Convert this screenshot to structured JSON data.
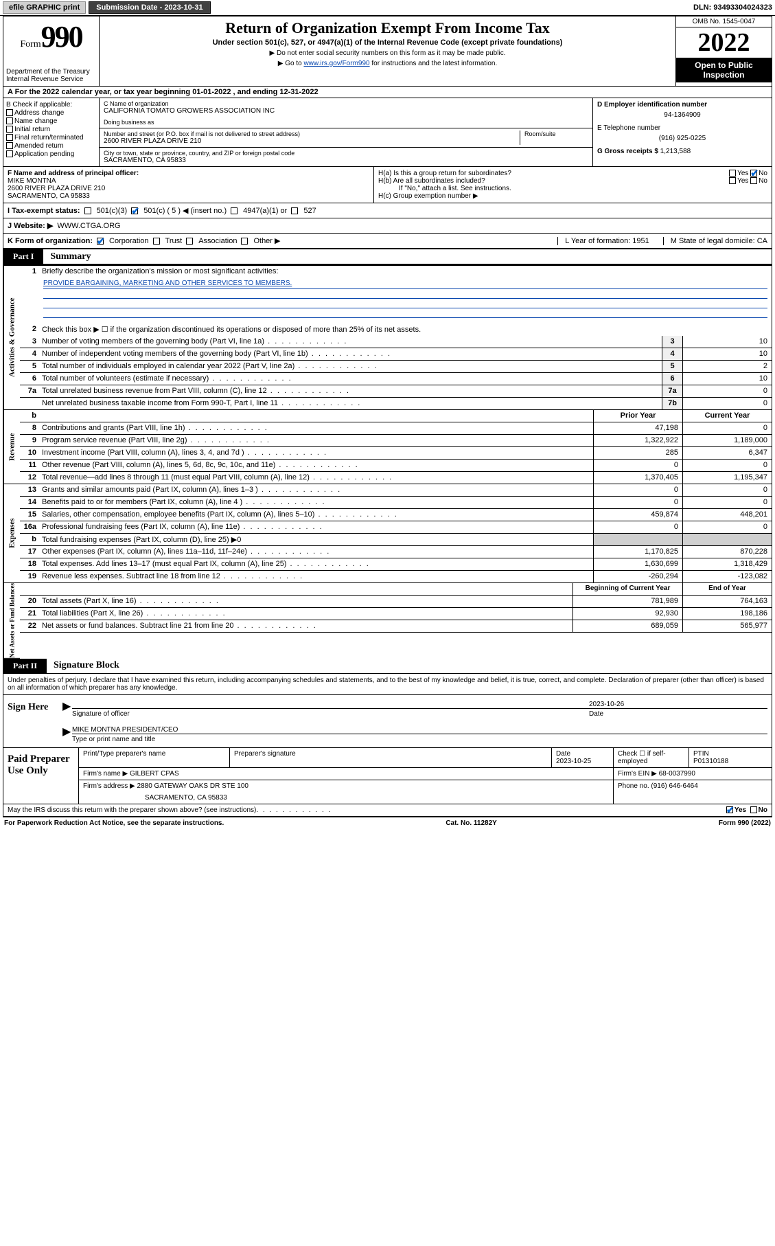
{
  "topbar": {
    "efile": "efile GRAPHIC print",
    "submission_label": "Submission Date - 2023-10-31",
    "dln": "DLN: 93493304024323"
  },
  "header": {
    "form_word": "Form",
    "form_num": "990",
    "dept": "Department of the Treasury Internal Revenue Service",
    "title": "Return of Organization Exempt From Income Tax",
    "subtitle": "Under section 501(c), 527, or 4947(a)(1) of the Internal Revenue Code (except private foundations)",
    "note1": "▶ Do not enter social security numbers on this form as it may be made public.",
    "note2_pre": "▶ Go to ",
    "note2_link": "www.irs.gov/Form990",
    "note2_post": " for instructions and the latest information.",
    "omb": "OMB No. 1545-0047",
    "year": "2022",
    "open": "Open to Public Inspection"
  },
  "rowA": "A For the 2022 calendar year, or tax year beginning 01-01-2022   , and ending 12-31-2022",
  "B": {
    "label": "B Check if applicable:",
    "opts": [
      "Address change",
      "Name change",
      "Initial return",
      "Final return/terminated",
      "Amended return",
      "Application pending"
    ]
  },
  "C": {
    "name_label": "C Name of organization",
    "name": "CALIFORNIA TOMATO GROWERS ASSOCIATION INC",
    "dba_label": "Doing business as",
    "dba": "",
    "street_label": "Number and street (or P.O. box if mail is not delivered to street address)",
    "street": "2600 RIVER PLAZA DRIVE 210",
    "room_label": "Room/suite",
    "city_label": "City or town, state or province, country, and ZIP or foreign postal code",
    "city": "SACRAMENTO, CA  95833"
  },
  "D": {
    "label": "D Employer identification number",
    "val": "94-1364909"
  },
  "E": {
    "label": "E Telephone number",
    "val": "(916) 925-0225"
  },
  "G": {
    "label": "G Gross receipts $",
    "val": "1,213,588"
  },
  "F": {
    "label": "F  Name and address of principal officer:",
    "name": "MIKE MONTNA",
    "addr1": "2600 RIVER PLAZA DRIVE 210",
    "addr2": "SACRAMENTO, CA  95833"
  },
  "H": {
    "a": "H(a)  Is this a group return for subordinates?",
    "b": "H(b)  Are all subordinates included?",
    "b_note": "If \"No,\" attach a list. See instructions.",
    "c": "H(c)  Group exemption number ▶",
    "yes": "Yes",
    "no": "No"
  },
  "I": {
    "label": "I   Tax-exempt status:",
    "o1": "501(c)(3)",
    "o2": "501(c) ( 5 ) ◀ (insert no.)",
    "o3": "4947(a)(1) or",
    "o4": "527"
  },
  "J": {
    "label": "J   Website: ▶",
    "val": "WWW.CTGA.ORG"
  },
  "K": {
    "label": "K Form of organization:",
    "o1": "Corporation",
    "o2": "Trust",
    "o3": "Association",
    "o4": "Other ▶",
    "L": "L Year of formation: 1951",
    "M": "M State of legal domicile: CA"
  },
  "partI": {
    "tag": "Part I",
    "title": "Summary"
  },
  "summary": {
    "l1_label": "Briefly describe the organization's mission or most significant activities:",
    "l1_val": "PROVIDE BARGAINING, MARKETING AND OTHER SERVICES TO MEMBERS.",
    "l2": "Check this box ▶ ☐  if the organization discontinued its operations or disposed of more than 25% of its net assets.",
    "rows_single": [
      {
        "n": "3",
        "t": "Number of voting members of the governing body (Part VI, line 1a)",
        "box": "3",
        "v": "10"
      },
      {
        "n": "4",
        "t": "Number of independent voting members of the governing body (Part VI, line 1b)",
        "box": "4",
        "v": "10"
      },
      {
        "n": "5",
        "t": "Total number of individuals employed in calendar year 2022 (Part V, line 2a)",
        "box": "5",
        "v": "2"
      },
      {
        "n": "6",
        "t": "Total number of volunteers (estimate if necessary)",
        "box": "6",
        "v": "10"
      },
      {
        "n": "7a",
        "t": "Total unrelated business revenue from Part VIII, column (C), line 12",
        "box": "7a",
        "v": "0"
      },
      {
        "n": "",
        "t": "Net unrelated business taxable income from Form 990-T, Part I, line 11",
        "box": "7b",
        "v": "0"
      }
    ],
    "hdr_b": "b",
    "hdr_prior": "Prior Year",
    "hdr_current": "Current Year",
    "rows_rev": [
      {
        "n": "8",
        "t": "Contributions and grants (Part VIII, line 1h)",
        "p": "47,198",
        "c": "0"
      },
      {
        "n": "9",
        "t": "Program service revenue (Part VIII, line 2g)",
        "p": "1,322,922",
        "c": "1,189,000"
      },
      {
        "n": "10",
        "t": "Investment income (Part VIII, column (A), lines 3, 4, and 7d )",
        "p": "285",
        "c": "6,347"
      },
      {
        "n": "11",
        "t": "Other revenue (Part VIII, column (A), lines 5, 6d, 8c, 9c, 10c, and 11e)",
        "p": "0",
        "c": "0"
      },
      {
        "n": "12",
        "t": "Total revenue—add lines 8 through 11 (must equal Part VIII, column (A), line 12)",
        "p": "1,370,405",
        "c": "1,195,347"
      }
    ],
    "rows_exp": [
      {
        "n": "13",
        "t": "Grants and similar amounts paid (Part IX, column (A), lines 1–3 )",
        "p": "0",
        "c": "0"
      },
      {
        "n": "14",
        "t": "Benefits paid to or for members (Part IX, column (A), line 4 )",
        "p": "0",
        "c": "0"
      },
      {
        "n": "15",
        "t": "Salaries, other compensation, employee benefits (Part IX, column (A), lines 5–10)",
        "p": "459,874",
        "c": "448,201"
      },
      {
        "n": "16a",
        "t": "Professional fundraising fees (Part IX, column (A), line 11e)",
        "p": "0",
        "c": "0"
      }
    ],
    "row16b": {
      "n": "b",
      "t": "Total fundraising expenses (Part IX, column (D), line 25) ▶0"
    },
    "rows_exp2": [
      {
        "n": "17",
        "t": "Other expenses (Part IX, column (A), lines 11a–11d, 11f–24e)",
        "p": "1,170,825",
        "c": "870,228"
      },
      {
        "n": "18",
        "t": "Total expenses. Add lines 13–17 (must equal Part IX, column (A), line 25)",
        "p": "1,630,699",
        "c": "1,318,429"
      },
      {
        "n": "19",
        "t": "Revenue less expenses. Subtract line 18 from line 12",
        "p": "-260,294",
        "c": "-123,082"
      }
    ],
    "hdr_begin": "Beginning of Current Year",
    "hdr_end": "End of Year",
    "rows_net": [
      {
        "n": "20",
        "t": "Total assets (Part X, line 16)",
        "p": "781,989",
        "c": "764,163"
      },
      {
        "n": "21",
        "t": "Total liabilities (Part X, line 26)",
        "p": "92,930",
        "c": "198,186"
      },
      {
        "n": "22",
        "t": "Net assets or fund balances. Subtract line 21 from line 20",
        "p": "689,059",
        "c": "565,977"
      }
    ],
    "side_ag": "Activities & Governance",
    "side_rev": "Revenue",
    "side_exp": "Expenses",
    "side_net": "Net Assets or Fund Balances"
  },
  "partII": {
    "tag": "Part II",
    "title": "Signature Block"
  },
  "sig": {
    "penalty": "Under penalties of perjury, I declare that I have examined this return, including accompanying schedules and statements, and to the best of my knowledge and belief, it is true, correct, and complete. Declaration of preparer (other than officer) is based on all information of which preparer has any knowledge.",
    "sign_here": "Sign Here",
    "sig_officer": "Signature of officer",
    "date": "Date",
    "date_val": "2023-10-26",
    "name_title": "MIKE MONTNA  PRESIDENT/CEO",
    "name_label": "Type or print name and title"
  },
  "prep": {
    "label": "Paid Preparer Use Only",
    "h_print": "Print/Type preparer's name",
    "h_sig": "Preparer's signature",
    "h_date": "Date",
    "date_val": "2023-10-25",
    "h_check": "Check ☐ if self-employed",
    "h_ptin": "PTIN",
    "ptin": "P01310188",
    "firm_name_l": "Firm's name   ▶",
    "firm_name": "GILBERT CPAS",
    "firm_ein_l": "Firm's EIN ▶",
    "firm_ein": "68-0037990",
    "firm_addr_l": "Firm's address ▶",
    "firm_addr1": "2880 GATEWAY OAKS DR STE 100",
    "firm_addr2": "SACRAMENTO, CA  95833",
    "phone_l": "Phone no.",
    "phone": "(916) 646-6464"
  },
  "footer": {
    "discuss": "May the IRS discuss this return with the preparer shown above? (see instructions)",
    "yes": "Yes",
    "no": "No",
    "paperwork": "For Paperwork Reduction Act Notice, see the separate instructions.",
    "cat": "Cat. No. 11282Y",
    "form": "Form 990 (2022)"
  }
}
